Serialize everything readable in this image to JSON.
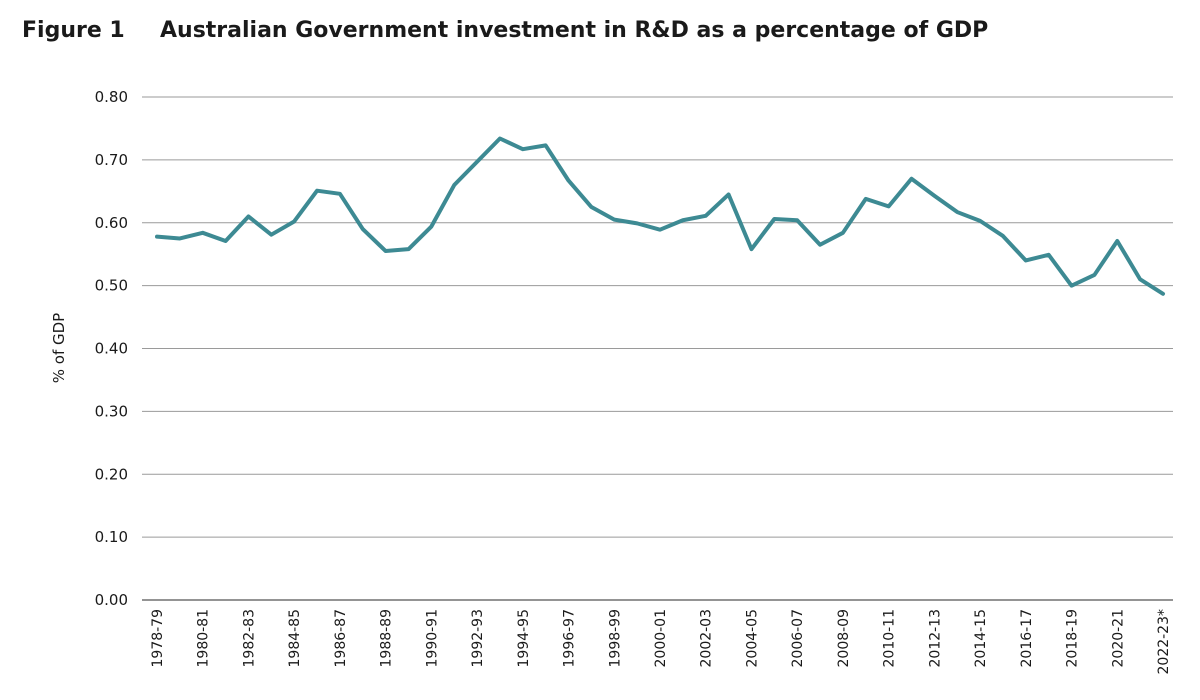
{
  "figure": {
    "label": "Figure 1",
    "title": "Australian Government investment in R&D as a percentage of GDP"
  },
  "chart_data": {
    "type": "line",
    "ylabel": "% of GDP",
    "xlabel": "",
    "ylim": [
      0,
      0.8
    ],
    "yticks": [
      "0.00",
      "0.10",
      "0.20",
      "0.30",
      "0.40",
      "0.50",
      "0.60",
      "0.70",
      "0.80"
    ],
    "grid": true,
    "line_color": "#3d8a93",
    "grid_color": "#9a9a9a",
    "x_tick_labels": [
      "1978-79",
      "1980-81",
      "1982-83",
      "1984-85",
      "1986-87",
      "1988-89",
      "1990-91",
      "1992-93",
      "1994-95",
      "1996-97",
      "1998-99",
      "2000-01",
      "2002-03",
      "2004-05",
      "2006-07",
      "2008-09",
      "2010-11",
      "2012-13",
      "2014-15",
      "2016-17",
      "2018-19",
      "2020-21",
      "2022-23"
    ],
    "last_tick_suffix": "*",
    "series": [
      {
        "x": [
          "1978-79",
          "1979-80",
          "1980-81",
          "1981-82",
          "1982-83",
          "1983-84",
          "1984-85",
          "1985-86",
          "1986-87",
          "1987-88",
          "1988-89",
          "1989-90",
          "1990-91",
          "1991-92",
          "1992-93",
          "1993-94",
          "1994-95",
          "1995-96",
          "1996-97",
          "1997-98",
          "1998-99",
          "1999-00",
          "2000-01",
          "2001-02",
          "2002-03",
          "2003-04",
          "2004-05",
          "2005-06",
          "2006-07",
          "2007-08",
          "2008-09",
          "2009-10",
          "2010-11",
          "2011-12",
          "2012-13",
          "2013-14",
          "2014-15",
          "2015-16",
          "2016-17",
          "2017-18",
          "2018-19",
          "2019-20",
          "2020-21",
          "2021-22",
          "2022-23"
        ],
        "values": [
          0.578,
          0.575,
          0.584,
          0.571,
          0.61,
          0.581,
          0.602,
          0.651,
          0.646,
          0.59,
          0.555,
          0.558,
          0.594,
          0.66,
          0.697,
          0.734,
          0.717,
          0.723,
          0.667,
          0.625,
          0.605,
          0.599,
          0.589,
          0.604,
          0.611,
          0.645,
          0.558,
          0.606,
          0.604,
          0.565,
          0.584,
          0.638,
          0.626,
          0.67,
          0.643,
          0.617,
          0.603,
          0.579,
          0.54,
          0.549,
          0.5,
          0.517,
          0.571,
          0.51,
          0.487
        ]
      }
    ]
  }
}
